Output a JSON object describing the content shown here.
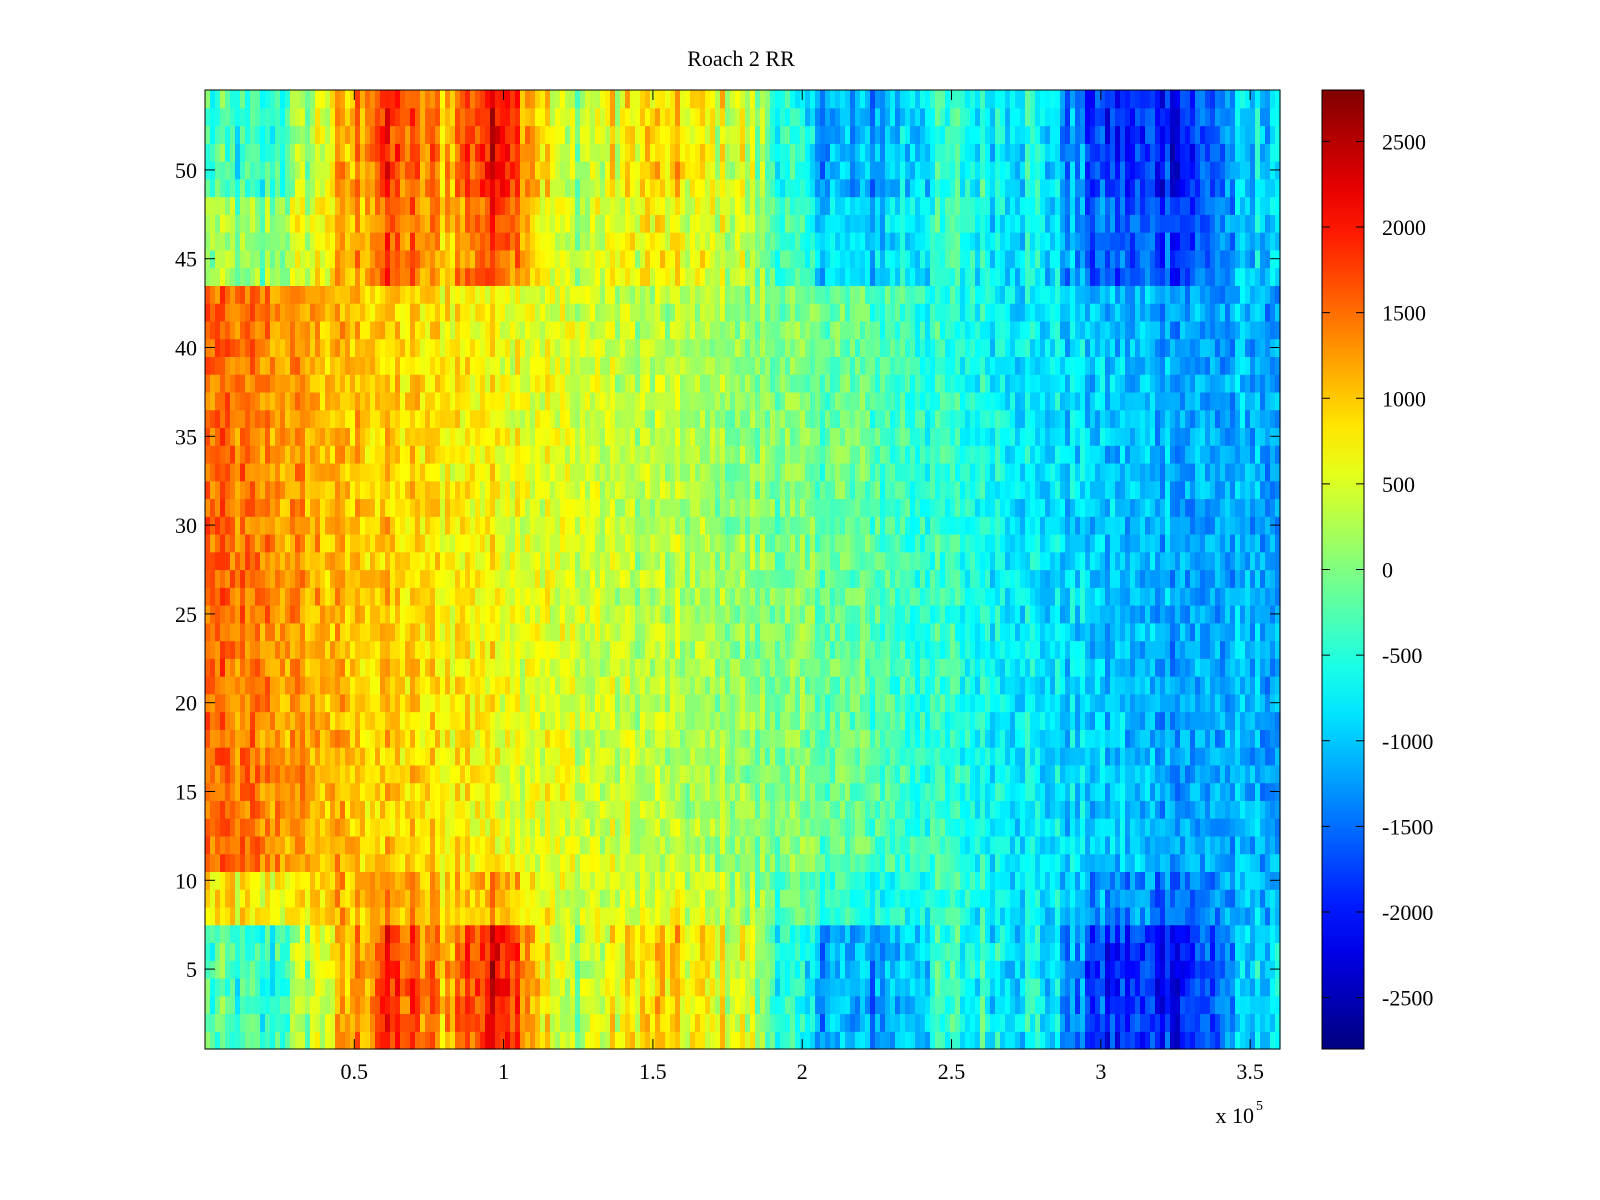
{
  "chart_data": {
    "type": "heatmap",
    "title": "Roach 2 RR",
    "xlabel": "",
    "ylabel": "",
    "x_range": [
      0,
      360000
    ],
    "y_range": [
      0.5,
      54.5
    ],
    "rows": 54,
    "x_ticks": [
      50000,
      100000,
      150000,
      200000,
      250000,
      300000,
      350000
    ],
    "x_tick_labels": [
      "0.5",
      "1",
      "1.5",
      "2",
      "2.5",
      "3",
      "3.5"
    ],
    "x_exponent_base": "x 10",
    "x_exponent_power": "5",
    "y_ticks": [
      5,
      10,
      15,
      20,
      25,
      30,
      35,
      40,
      45,
      50
    ],
    "y_tick_labels": [
      "5",
      "10",
      "15",
      "20",
      "25",
      "30",
      "35",
      "40",
      "45",
      "50"
    ],
    "colorbar": {
      "range": [
        -2800,
        2800
      ],
      "ticks": [
        2500,
        2000,
        1500,
        1000,
        500,
        0,
        -500,
        -1000,
        -1500,
        -2000,
        -2500
      ],
      "tick_labels": [
        "2500",
        "2000",
        "1500",
        "1000",
        "500",
        "0",
        "-500",
        "-1000",
        "-1500",
        "-2000",
        "-2500"
      ],
      "colormap": "jet"
    },
    "value_profile": {
      "x": [
        0,
        20000,
        40000,
        60000,
        80000,
        100000,
        120000,
        150000,
        180000,
        200000,
        220000,
        250000,
        280000,
        300000,
        330000,
        360000
      ],
      "center_rows": [
        1500,
        1350,
        1100,
        950,
        800,
        700,
        500,
        300,
        100,
        -50,
        -200,
        -500,
        -800,
        -1000,
        -1200,
        -1150
      ],
      "edge_rows": [
        -300,
        -600,
        600,
        1800,
        1200,
        2300,
        200,
        900,
        500,
        -900,
        -1300,
        -500,
        -700,
        -1900,
        -1900,
        -600
      ],
      "edge_row_ranges": [
        [
          1,
          7
        ],
        [
          49,
          54
        ]
      ],
      "secondary_edge_rows": [
        [
          [
            44,
            48
          ],
          0.7
        ],
        [
          [
            8,
            10
          ],
          0.35
        ]
      ]
    }
  }
}
